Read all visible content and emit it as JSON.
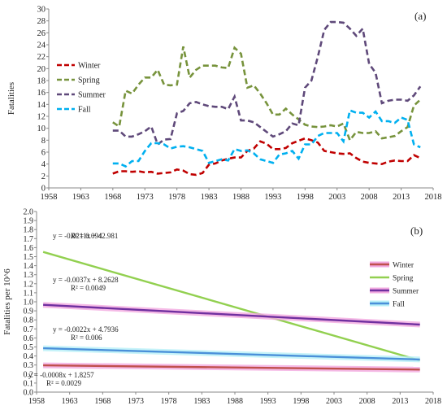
{
  "chart_data": [
    {
      "panel": "(a)",
      "type": "line",
      "ylabel": "Fatalities",
      "xlim": [
        1958,
        2018
      ],
      "ylim": [
        0,
        30
      ],
      "xticks": [
        1958,
        1963,
        1968,
        1973,
        1978,
        1983,
        1988,
        1993,
        1998,
        2003,
        2008,
        2013,
        2018
      ],
      "yticks": [
        0,
        2,
        4,
        6,
        8,
        10,
        12,
        14,
        16,
        18,
        20,
        22,
        24,
        26,
        28,
        30
      ],
      "legend_position": "left",
      "line_style": "dashed",
      "x": [
        1968,
        1969,
        1970,
        1971,
        1972,
        1973,
        1974,
        1975,
        1976,
        1977,
        1978,
        1979,
        1980,
        1981,
        1982,
        1983,
        1984,
        1985,
        1986,
        1987,
        1988,
        1989,
        1990,
        1991,
        1992,
        1993,
        1994,
        1995,
        1996,
        1997,
        1998,
        1999,
        2000,
        2001,
        2002,
        2003,
        2004,
        2005,
        2006,
        2007,
        2008,
        2009,
        2010,
        2011,
        2012,
        2013,
        2014,
        2015,
        2016
      ],
      "series": [
        {
          "name": "Winter",
          "color": "#c00000",
          "values": [
            2.4,
            2.8,
            2.8,
            2.7,
            2.8,
            2.6,
            2.7,
            2.4,
            2.5,
            2.6,
            3.1,
            2.9,
            2.3,
            2.2,
            2.5,
            3.9,
            4.1,
            4.6,
            4.9,
            5.1,
            5.1,
            6.2,
            6.6,
            7.8,
            7.4,
            6.5,
            6.5,
            6.7,
            7.5,
            7.9,
            8.3,
            8.0,
            7.6,
            6.2,
            6.0,
            5.8,
            5.7,
            5.8,
            5.0,
            4.4,
            4.2,
            4.1,
            4.0,
            4.4,
            4.6,
            4.5,
            4.5,
            5.5,
            5.0
          ]
        },
        {
          "name": "Spring",
          "color": "#77933c",
          "values": [
            11.0,
            10.3,
            16.3,
            15.8,
            17.3,
            18.5,
            18.5,
            19.8,
            17.3,
            17.2,
            17.3,
            23.7,
            18.5,
            19.8,
            20.5,
            20.5,
            20.5,
            20.2,
            20.1,
            23.5,
            22.5,
            16.8,
            17.2,
            15.8,
            14.2,
            12.3,
            12.3,
            13.3,
            12.3,
            11.5,
            10.6,
            10.3,
            10.2,
            10.3,
            10.5,
            10.3,
            10.8,
            8.0,
            9.4,
            9.2,
            9.2,
            9.5,
            8.3,
            8.5,
            8.7,
            9.5,
            10.2,
            13.8,
            14.8
          ]
        },
        {
          "name": "Summer",
          "color": "#5f497a",
          "values": [
            9.6,
            9.6,
            8.6,
            8.6,
            9.0,
            9.5,
            10.3,
            7.3,
            8.1,
            8.2,
            12.5,
            12.9,
            14.2,
            14.4,
            14.0,
            13.7,
            13.6,
            13.6,
            13.2,
            15.3,
            11.3,
            11.3,
            11.0,
            10.2,
            9.4,
            8.6,
            9.0,
            9.5,
            10.8,
            10.5,
            16.8,
            18.0,
            22.0,
            26.5,
            27.8,
            27.8,
            27.7,
            26.7,
            25.5,
            26.7,
            20.8,
            19.3,
            14.2,
            14.6,
            14.8,
            14.8,
            14.6,
            15.5,
            17.0
          ]
        },
        {
          "name": "Fall",
          "color": "#00b0f0",
          "values": [
            4.1,
            4.1,
            3.6,
            4.5,
            4.5,
            6.2,
            7.5,
            7.5,
            7.3,
            6.6,
            6.9,
            7.0,
            6.8,
            6.5,
            6.2,
            4.2,
            4.5,
            4.8,
            4.6,
            6.5,
            6.2,
            6.3,
            5.8,
            4.8,
            4.5,
            4.2,
            5.6,
            5.8,
            6.2,
            4.9,
            7.3,
            7.3,
            8.7,
            9.2,
            9.2,
            9.2,
            7.8,
            13.0,
            12.6,
            12.6,
            11.8,
            12.8,
            11.2,
            11.2,
            10.9,
            11.8,
            11.4,
            7.3,
            6.8
          ]
        }
      ]
    },
    {
      "panel": "(b)",
      "type": "line",
      "ylabel": "Fatalities per 10^6",
      "xlim": [
        1958,
        2018
      ],
      "ylim": [
        0,
        2.0
      ],
      "xticks": [
        1958,
        1963,
        1968,
        1973,
        1978,
        1983,
        1988,
        1993,
        1998,
        2003,
        2008,
        2013,
        2018
      ],
      "yticks": [
        0,
        0.1,
        0.2,
        0.3,
        0.4,
        0.5,
        0.6,
        0.7,
        0.8,
        0.9,
        1.0,
        1.1,
        1.2,
        1.3,
        1.4,
        1.5,
        1.6,
        1.7,
        1.8,
        1.9,
        2.0
      ],
      "legend_position": "right",
      "x": [
        1959,
        2016
      ],
      "series": [
        {
          "name": "Winter",
          "color": "#c0504d",
          "halo": "#f2a9e0",
          "values": [
            0.296,
            0.25
          ],
          "equation": "y = -0.0008x + 1.8257",
          "r2": "R² = 0.0029"
        },
        {
          "name": "Spring",
          "color": "#92d050",
          "values": [
            1.552,
            0.35
          ],
          "equation": "y = -0.0211x + 42.981",
          "r2": "R² = 0.094"
        },
        {
          "name": "Summer",
          "color": "#7030a0",
          "halo": "#f2a9e0",
          "values": [
            0.967,
            0.748
          ],
          "equation": "y = -0.0037x + 8.2628",
          "r2": "R² = 0.0049"
        },
        {
          "name": "Fall",
          "color": "#4a90d9",
          "halo": "#b8f0f8",
          "values": [
            0.486,
            0.361
          ],
          "equation": "y = -0.0022x + 4.7936",
          "r2": "R² = 0.006"
        }
      ]
    }
  ]
}
